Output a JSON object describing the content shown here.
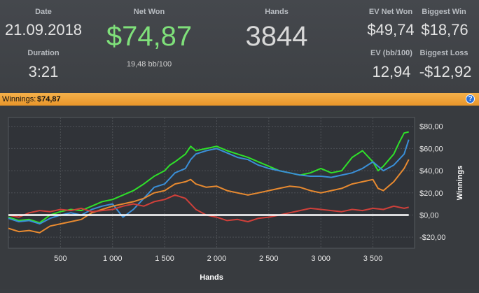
{
  "stats": {
    "date_label": "Date",
    "date_value": "21.09.2018",
    "duration_label": "Duration",
    "duration_value": "3:21",
    "net_won_label": "Net Won",
    "net_won_value": "$74,87",
    "bb_per_100": "19,48 bb/100",
    "hands_label": "Hands",
    "hands_value": "3844",
    "ev_net_won_label": "EV Net Won",
    "ev_net_won_value": "$49,74",
    "biggest_win_label": "Biggest Win",
    "biggest_win_value": "$18,76",
    "ev_bb_label": "EV (bb/100)",
    "ev_bb_value": "12,94",
    "biggest_loss_label": "Biggest Loss",
    "biggest_loss_value": "-$12,92"
  },
  "bar": {
    "winnings_label": "Winnings:",
    "winnings_value": "$74,87",
    "help_glyph": "?"
  },
  "colors": {
    "net_won": "#7fe07a",
    "green": "#2fe02a",
    "blue": "#3a8fd8",
    "orange": "#e88a30",
    "red": "#d0403a",
    "bar": "#f0a640"
  },
  "chart_data": {
    "type": "line",
    "xlabel": "Hands",
    "ylabel": "Winnings",
    "xlim": [
      0,
      3900
    ],
    "ylim": [
      -30,
      88
    ],
    "x_ticks": [
      500,
      1000,
      1500,
      2000,
      2500,
      3000,
      3500
    ],
    "x_tick_labels": [
      "500",
      "1 000",
      "1 500",
      "2 000",
      "2 500",
      "3 000",
      "3 500"
    ],
    "y_ticks": [
      80,
      60,
      40,
      20,
      0,
      -20
    ],
    "y_tick_labels": [
      "$80,00",
      "$60,00",
      "$40,00",
      "$20,00",
      "$0,00",
      "-$20,00"
    ],
    "grid": true,
    "series": [
      {
        "color": "#2fe02a",
        "x": [
          0,
          100,
          200,
          300,
          400,
          500,
          600,
          700,
          800,
          900,
          1000,
          1100,
          1200,
          1300,
          1400,
          1500,
          1550,
          1600,
          1700,
          1750,
          1800,
          1900,
          2000,
          2100,
          2200,
          2300,
          2400,
          2500,
          2600,
          2700,
          2800,
          2900,
          3000,
          3100,
          3200,
          3300,
          3350,
          3400,
          3500,
          3550,
          3600,
          3700,
          3750,
          3800,
          3844
        ],
        "y": [
          -2,
          -5,
          -4,
          -7,
          0,
          3,
          5,
          4,
          8,
          12,
          14,
          18,
          22,
          28,
          35,
          40,
          45,
          48,
          55,
          62,
          58,
          60,
          62,
          58,
          55,
          52,
          48,
          44,
          40,
          38,
          36,
          38,
          42,
          38,
          40,
          52,
          55,
          58,
          48,
          40,
          44,
          55,
          65,
          74,
          75
        ]
      },
      {
        "color": "#3a8fd8",
        "x": [
          0,
          100,
          200,
          300,
          400,
          500,
          600,
          700,
          800,
          900,
          1000,
          1100,
          1200,
          1300,
          1400,
          1500,
          1600,
          1700,
          1750,
          1800,
          1900,
          2000,
          2100,
          2200,
          2300,
          2400,
          2500,
          2600,
          2700,
          2800,
          2900,
          3000,
          3100,
          3200,
          3300,
          3400,
          3500,
          3550,
          3600,
          3700,
          3800,
          3844
        ],
        "y": [
          -3,
          -6,
          -5,
          -8,
          -3,
          0,
          2,
          0,
          5,
          8,
          10,
          -2,
          5,
          15,
          25,
          28,
          38,
          42,
          50,
          55,
          58,
          60,
          56,
          52,
          50,
          45,
          42,
          40,
          38,
          36,
          35,
          35,
          34,
          36,
          38,
          42,
          48,
          44,
          40,
          45,
          55,
          68
        ]
      },
      {
        "color": "#e88a30",
        "x": [
          0,
          100,
          200,
          300,
          400,
          500,
          600,
          700,
          800,
          900,
          1000,
          1100,
          1200,
          1300,
          1400,
          1500,
          1550,
          1600,
          1700,
          1750,
          1800,
          1900,
          2000,
          2100,
          2200,
          2300,
          2400,
          2500,
          2600,
          2700,
          2800,
          2900,
          3000,
          3100,
          3200,
          3300,
          3400,
          3500,
          3550,
          3600,
          3700,
          3800,
          3844
        ],
        "y": [
          -12,
          -15,
          -14,
          -16,
          -10,
          -8,
          -6,
          -4,
          2,
          5,
          8,
          10,
          12,
          15,
          20,
          22,
          25,
          28,
          30,
          32,
          28,
          25,
          26,
          22,
          20,
          18,
          20,
          22,
          24,
          26,
          25,
          22,
          20,
          22,
          24,
          28,
          30,
          32,
          24,
          22,
          30,
          42,
          50
        ]
      },
      {
        "color": "#d0403a",
        "x": [
          0,
          100,
          200,
          300,
          400,
          500,
          600,
          700,
          800,
          900,
          1000,
          1100,
          1200,
          1300,
          1400,
          1500,
          1600,
          1700,
          1800,
          1900,
          2000,
          2100,
          2200,
          2300,
          2400,
          2500,
          2600,
          2700,
          2800,
          2900,
          3000,
          3100,
          3200,
          3300,
          3400,
          3500,
          3600,
          3700,
          3800,
          3844
        ],
        "y": [
          0,
          -2,
          2,
          4,
          3,
          5,
          4,
          6,
          3,
          4,
          5,
          8,
          10,
          8,
          12,
          14,
          18,
          15,
          5,
          0,
          -2,
          -5,
          -4,
          -6,
          -3,
          -2,
          0,
          2,
          4,
          6,
          5,
          4,
          3,
          5,
          4,
          6,
          5,
          8,
          6,
          7
        ]
      },
      {
        "color": "#ffffff",
        "x": [
          0,
          3844
        ],
        "y": [
          0,
          0
        ]
      }
    ]
  }
}
